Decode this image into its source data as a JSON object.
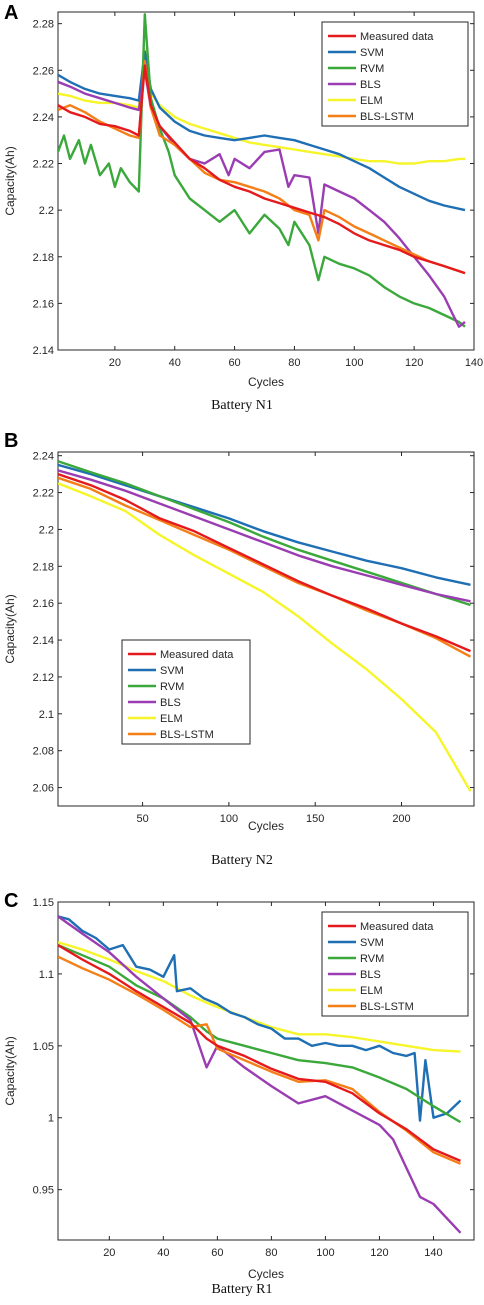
{
  "legend_labels": [
    "Measured data",
    "SVM",
    "RVM",
    "BLS",
    "ELM",
    "BLS-LSTM"
  ],
  "colors": {
    "Measured data": "#e41a1c",
    "SVM": "#1f6fb4",
    "RVM": "#3aa83a",
    "BLS": "#9b3db2",
    "ELM": "#f5f52a",
    "BLS-LSTM": "#f57f17"
  },
  "chart_data": [
    {
      "panel": "A",
      "type": "line",
      "caption": "Battery N1",
      "xlabel": "Cycles",
      "ylabel": "Capacity(Ah)",
      "xlim": [
        1,
        140
      ],
      "ylim": [
        2.14,
        2.285
      ],
      "xticks": [
        20,
        40,
        60,
        80,
        100,
        120,
        140
      ],
      "yticks": [
        2.14,
        2.16,
        2.18,
        2.2,
        2.22,
        2.24,
        2.26,
        2.28
      ],
      "legend_position": "top-right",
      "series": [
        {
          "name": "Measured data",
          "x": [
            1,
            5,
            10,
            15,
            20,
            25,
            28,
            30,
            32,
            35,
            40,
            45,
            50,
            55,
            60,
            65,
            70,
            75,
            80,
            85,
            90,
            95,
            100,
            105,
            110,
            115,
            120,
            125,
            130,
            137
          ],
          "y": [
            2.245,
            2.242,
            2.24,
            2.237,
            2.236,
            2.234,
            2.232,
            2.262,
            2.245,
            2.236,
            2.229,
            2.222,
            2.218,
            2.213,
            2.21,
            2.208,
            2.205,
            2.203,
            2.201,
            2.199,
            2.197,
            2.194,
            2.19,
            2.187,
            2.185,
            2.183,
            2.18,
            2.178,
            2.176,
            2.173
          ]
        },
        {
          "name": "SVM",
          "x": [
            1,
            5,
            10,
            15,
            20,
            25,
            28,
            30,
            32,
            35,
            40,
            45,
            50,
            55,
            60,
            65,
            70,
            75,
            80,
            85,
            90,
            95,
            100,
            105,
            110,
            115,
            120,
            125,
            130,
            137
          ],
          "y": [
            2.258,
            2.255,
            2.252,
            2.25,
            2.249,
            2.248,
            2.247,
            2.268,
            2.252,
            2.244,
            2.238,
            2.234,
            2.232,
            2.231,
            2.23,
            2.231,
            2.232,
            2.231,
            2.23,
            2.228,
            2.226,
            2.224,
            2.221,
            2.218,
            2.214,
            2.21,
            2.207,
            2.204,
            2.202,
            2.2
          ]
        },
        {
          "name": "RVM",
          "x": [
            1,
            3,
            5,
            8,
            10,
            12,
            15,
            18,
            20,
            22,
            25,
            28,
            30,
            32,
            35,
            38,
            40,
            45,
            50,
            55,
            60,
            65,
            70,
            75,
            78,
            80,
            85,
            88,
            90,
            95,
            100,
            105,
            110,
            115,
            120,
            125,
            130,
            135,
            137
          ],
          "y": [
            2.225,
            2.232,
            2.222,
            2.23,
            2.22,
            2.228,
            2.215,
            2.22,
            2.21,
            2.218,
            2.212,
            2.208,
            2.284,
            2.248,
            2.235,
            2.225,
            2.215,
            2.205,
            2.2,
            2.195,
            2.2,
            2.19,
            2.198,
            2.192,
            2.185,
            2.195,
            2.185,
            2.17,
            2.18,
            2.177,
            2.175,
            2.172,
            2.167,
            2.163,
            2.16,
            2.158,
            2.155,
            2.152,
            2.15
          ]
        },
        {
          "name": "BLS",
          "x": [
            1,
            5,
            10,
            15,
            20,
            25,
            28,
            30,
            32,
            35,
            40,
            45,
            50,
            55,
            58,
            60,
            65,
            70,
            75,
            78,
            80,
            85,
            88,
            90,
            95,
            100,
            105,
            110,
            115,
            120,
            125,
            130,
            133,
            135,
            137
          ],
          "y": [
            2.255,
            2.253,
            2.25,
            2.248,
            2.246,
            2.244,
            2.243,
            2.26,
            2.244,
            2.236,
            2.228,
            2.222,
            2.22,
            2.224,
            2.215,
            2.222,
            2.218,
            2.225,
            2.226,
            2.21,
            2.215,
            2.214,
            2.19,
            2.211,
            2.208,
            2.205,
            2.2,
            2.195,
            2.188,
            2.18,
            2.172,
            2.163,
            2.155,
            2.15,
            2.152
          ]
        },
        {
          "name": "ELM",
          "x": [
            1,
            5,
            10,
            15,
            20,
            25,
            28,
            30,
            32,
            35,
            40,
            45,
            50,
            55,
            60,
            65,
            70,
            75,
            80,
            85,
            90,
            95,
            100,
            105,
            110,
            115,
            120,
            125,
            130,
            135,
            137
          ],
          "y": [
            2.25,
            2.249,
            2.247,
            2.246,
            2.246,
            2.245,
            2.244,
            2.269,
            2.25,
            2.245,
            2.24,
            2.237,
            2.235,
            2.233,
            2.231,
            2.229,
            2.228,
            2.227,
            2.226,
            2.225,
            2.224,
            2.223,
            2.222,
            2.221,
            2.221,
            2.22,
            2.22,
            2.221,
            2.221,
            2.222,
            2.222
          ]
        },
        {
          "name": "BLS-LSTM",
          "x": [
            1,
            5,
            10,
            15,
            20,
            25,
            28,
            30,
            32,
            35,
            40,
            45,
            50,
            55,
            60,
            65,
            70,
            75,
            80,
            85,
            88,
            90,
            95,
            100,
            105,
            110,
            115,
            120,
            125,
            130,
            137
          ],
          "y": [
            2.243,
            2.245,
            2.242,
            2.238,
            2.235,
            2.232,
            2.231,
            2.264,
            2.244,
            2.232,
            2.228,
            2.222,
            2.216,
            2.213,
            2.212,
            2.21,
            2.208,
            2.205,
            2.2,
            2.198,
            2.187,
            2.2,
            2.197,
            2.193,
            2.19,
            2.187,
            2.184,
            2.181,
            2.178,
            2.176,
            2.173
          ]
        }
      ]
    },
    {
      "panel": "B",
      "type": "line",
      "caption": "Battery N2",
      "xlabel": "Cycles",
      "ylabel": "Capacity(Ah)",
      "xlim": [
        1,
        242
      ],
      "ylim": [
        2.05,
        2.242
      ],
      "xticks": [
        50,
        100,
        150,
        200
      ],
      "yticks": [
        2.06,
        2.08,
        2.1,
        2.12,
        2.14,
        2.16,
        2.18,
        2.2,
        2.22,
        2.24
      ],
      "legend_position": "bottom-left",
      "series": [
        {
          "name": "Measured data",
          "x": [
            1,
            20,
            40,
            60,
            80,
            100,
            120,
            140,
            160,
            180,
            200,
            220,
            240
          ],
          "y": [
            2.23,
            2.224,
            2.216,
            2.206,
            2.199,
            2.19,
            2.181,
            2.172,
            2.164,
            2.157,
            2.149,
            2.142,
            2.134
          ]
        },
        {
          "name": "SVM",
          "x": [
            1,
            20,
            40,
            60,
            80,
            100,
            120,
            140,
            160,
            180,
            200,
            220,
            240
          ],
          "y": [
            2.235,
            2.23,
            2.224,
            2.218,
            2.212,
            2.206,
            2.199,
            2.193,
            2.188,
            2.183,
            2.179,
            2.174,
            2.17
          ]
        },
        {
          "name": "RVM",
          "x": [
            1,
            20,
            40,
            60,
            80,
            100,
            120,
            140,
            160,
            180,
            200,
            220,
            240
          ],
          "y": [
            2.237,
            2.231,
            2.225,
            2.218,
            2.211,
            2.204,
            2.196,
            2.189,
            2.183,
            2.177,
            2.171,
            2.165,
            2.159
          ]
        },
        {
          "name": "BLS",
          "x": [
            1,
            20,
            40,
            60,
            80,
            100,
            120,
            140,
            160,
            180,
            200,
            220,
            240
          ],
          "y": [
            2.232,
            2.227,
            2.221,
            2.214,
            2.207,
            2.2,
            2.193,
            2.186,
            2.18,
            2.175,
            2.17,
            2.165,
            2.161
          ]
        },
        {
          "name": "ELM",
          "x": [
            1,
            20,
            40,
            60,
            80,
            100,
            120,
            140,
            160,
            180,
            200,
            220,
            240
          ],
          "y": [
            2.225,
            2.218,
            2.21,
            2.197,
            2.186,
            2.176,
            2.166,
            2.153,
            2.138,
            2.124,
            2.108,
            2.09,
            2.058
          ]
        },
        {
          "name": "BLS-LSTM",
          "x": [
            1,
            20,
            40,
            60,
            80,
            100,
            120,
            140,
            160,
            180,
            200,
            220,
            240
          ],
          "y": [
            2.228,
            2.222,
            2.213,
            2.205,
            2.197,
            2.189,
            2.18,
            2.171,
            2.164,
            2.156,
            2.149,
            2.141,
            2.131
          ]
        }
      ]
    },
    {
      "panel": "C",
      "type": "line",
      "caption": "Battery R1",
      "xlabel": "Cycles",
      "ylabel": "Capacity(Ah)",
      "xlim": [
        1,
        155
      ],
      "ylim": [
        0.915,
        1.15
      ],
      "xticks": [
        20,
        40,
        60,
        80,
        100,
        120,
        140
      ],
      "yticks": [
        0.95,
        1.0,
        1.05,
        1.1,
        1.15
      ],
      "legend_position": "top-right",
      "series": [
        {
          "name": "Measured data",
          "x": [
            1,
            10,
            20,
            30,
            40,
            50,
            56,
            60,
            70,
            80,
            90,
            100,
            110,
            120,
            130,
            140,
            150
          ],
          "y": [
            1.12,
            1.11,
            1.1,
            1.088,
            1.077,
            1.066,
            1.055,
            1.05,
            1.043,
            1.034,
            1.027,
            1.025,
            1.017,
            1.003,
            0.992,
            0.978,
            0.97
          ]
        },
        {
          "name": "SVM",
          "x": [
            1,
            5,
            10,
            15,
            20,
            25,
            30,
            35,
            40,
            44,
            45,
            50,
            55,
            60,
            65,
            70,
            75,
            80,
            85,
            90,
            95,
            100,
            105,
            110,
            115,
            120,
            125,
            130,
            133,
            135,
            137,
            140,
            145,
            150
          ],
          "y": [
            1.14,
            1.138,
            1.13,
            1.125,
            1.117,
            1.12,
            1.105,
            1.103,
            1.098,
            1.113,
            1.088,
            1.09,
            1.083,
            1.079,
            1.073,
            1.07,
            1.065,
            1.062,
            1.055,
            1.055,
            1.05,
            1.052,
            1.05,
            1.05,
            1.047,
            1.05,
            1.045,
            1.043,
            1.045,
            0.998,
            1.04,
            1.0,
            1.003,
            1.012
          ]
        },
        {
          "name": "RVM",
          "x": [
            1,
            10,
            20,
            30,
            40,
            50,
            56,
            60,
            70,
            80,
            90,
            100,
            110,
            120,
            130,
            140,
            150
          ],
          "y": [
            1.12,
            1.113,
            1.105,
            1.092,
            1.083,
            1.07,
            1.06,
            1.055,
            1.05,
            1.045,
            1.04,
            1.038,
            1.035,
            1.028,
            1.02,
            1.008,
            0.997
          ]
        },
        {
          "name": "BLS",
          "x": [
            1,
            10,
            20,
            30,
            40,
            50,
            56,
            60,
            70,
            80,
            90,
            100,
            110,
            120,
            125,
            130,
            135,
            140,
            145,
            150
          ],
          "y": [
            1.14,
            1.128,
            1.115,
            1.098,
            1.083,
            1.068,
            1.035,
            1.05,
            1.035,
            1.022,
            1.01,
            1.015,
            1.005,
            0.995,
            0.985,
            0.965,
            0.945,
            0.94,
            0.93,
            0.92
          ]
        },
        {
          "name": "ELM",
          "x": [
            1,
            10,
            20,
            30,
            40,
            50,
            56,
            60,
            70,
            80,
            90,
            100,
            110,
            120,
            130,
            140,
            150
          ],
          "y": [
            1.122,
            1.117,
            1.11,
            1.102,
            1.095,
            1.085,
            1.08,
            1.077,
            1.07,
            1.063,
            1.058,
            1.058,
            1.056,
            1.053,
            1.05,
            1.047,
            1.046
          ]
        },
        {
          "name": "BLS-LSTM",
          "x": [
            1,
            10,
            20,
            30,
            40,
            50,
            56,
            60,
            70,
            80,
            90,
            100,
            110,
            120,
            130,
            140,
            150
          ],
          "y": [
            1.112,
            1.104,
            1.096,
            1.086,
            1.075,
            1.063,
            1.065,
            1.048,
            1.04,
            1.032,
            1.025,
            1.026,
            1.02,
            1.004,
            0.991,
            0.976,
            0.968
          ]
        }
      ]
    }
  ]
}
